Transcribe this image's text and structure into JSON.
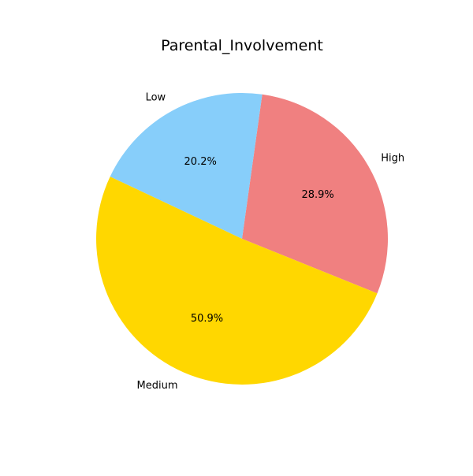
{
  "chart_data": {
    "type": "pie",
    "title": "Parental_Involvement",
    "categories": [
      "High",
      "Low",
      "Medium"
    ],
    "values": [
      28.9,
      20.2,
      50.9
    ],
    "value_labels": [
      "28.9%",
      "20.2%",
      "50.9%"
    ],
    "colors": [
      "#f08080",
      "#87cefa",
      "#ffd700"
    ],
    "start_angle_deg": -22,
    "direction": "counterclockwise",
    "legend": "none"
  }
}
